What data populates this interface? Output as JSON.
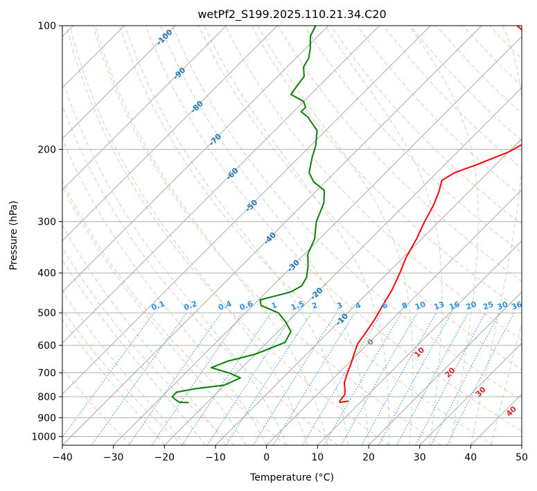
{
  "chart_data": {
    "type": "line",
    "title": "wetPf2_S199.2025.110.21.34.C20",
    "xlabel": "Temperature (°C)",
    "ylabel": "Pressure (hPa)",
    "xlim": [
      -40,
      50
    ],
    "ylim": [
      1050,
      100
    ],
    "y_scale": "log",
    "skew_deg": 45,
    "grid": true,
    "x_ticks": [
      "−40",
      "−30",
      "−20",
      "−10",
      "0",
      "10",
      "20",
      "30",
      "40",
      "50"
    ],
    "y_ticks": [
      {
        "p": 100,
        "label": "100"
      },
      {
        "p": 200,
        "label": "200"
      },
      {
        "p": 300,
        "label": "300"
      },
      {
        "p": 400,
        "label": "400"
      },
      {
        "p": 500,
        "label": "500"
      },
      {
        "p": 600,
        "label": "600"
      },
      {
        "p": 700,
        "label": "700"
      },
      {
        "p": 800,
        "label": "800"
      },
      {
        "p": 900,
        "label": "900"
      },
      {
        "p": 1000,
        "label": "1000"
      }
    ],
    "colors": {
      "temperature": "#ff0000",
      "dewpoint": "#008000",
      "isotherm": "#aaaaaa",
      "dry_adiabat": "#ffbfa8",
      "moist_adiabat": "#b8dcb8",
      "mixing_ratio": "#2c8ee8",
      "isotherm_label": "#1f77b4",
      "moist_label": "#d62728",
      "mixing_label": "#2e8fe6"
    },
    "series": [
      {
        "role": "temperature",
        "color": "#ff0000",
        "points": [
          [
            7.3,
            820
          ],
          [
            6.0,
            826
          ],
          [
            5.7,
            820
          ],
          [
            5.4,
            790
          ],
          [
            4.3,
            765
          ],
          [
            3.0,
            740
          ],
          [
            1.7,
            700
          ],
          [
            0.6,
            665
          ],
          [
            -0.7,
            630
          ],
          [
            -2.0,
            595
          ],
          [
            -2.6,
            560
          ],
          [
            -3.4,
            520
          ],
          [
            -4.6,
            480
          ],
          [
            -5.8,
            440
          ],
          [
            -7.6,
            400
          ],
          [
            -9.5,
            365
          ],
          [
            -11.0,
            330
          ],
          [
            -12.8,
            300
          ],
          [
            -14.3,
            273
          ],
          [
            -15.9,
            253
          ],
          [
            -17.5,
            238
          ],
          [
            -16.5,
            228
          ],
          [
            -13.5,
            217
          ],
          [
            -10.0,
            203
          ],
          [
            -7.5,
            186
          ],
          [
            -6.8,
            172
          ],
          [
            -7.8,
            160
          ],
          [
            -10.0,
            148
          ],
          [
            -13.0,
            136
          ],
          [
            -18.5,
            124
          ],
          [
            -23.0,
            114
          ],
          [
            -28.0,
            107
          ],
          [
            -33.0,
            100
          ]
        ]
      },
      {
        "role": "dewpoint",
        "color": "#008000",
        "points": [
          [
            -23.7,
            827
          ],
          [
            -25.5,
            825
          ],
          [
            -26.6,
            815
          ],
          [
            -28.0,
            800
          ],
          [
            -28.0,
            780
          ],
          [
            -25.0,
            765
          ],
          [
            -20.0,
            750
          ],
          [
            -18.3,
            720
          ],
          [
            -21.5,
            700
          ],
          [
            -26.0,
            680
          ],
          [
            -24.0,
            655
          ],
          [
            -20.0,
            630
          ],
          [
            -16.5,
            590
          ],
          [
            -17.5,
            555
          ],
          [
            -20.5,
            525
          ],
          [
            -23.6,
            500
          ],
          [
            -28.4,
            480
          ],
          [
            -29.7,
            465
          ],
          [
            -27.5,
            455
          ],
          [
            -25.3,
            445
          ],
          [
            -24.3,
            430
          ],
          [
            -25.0,
            410
          ],
          [
            -26.9,
            385
          ],
          [
            -29.3,
            360
          ],
          [
            -31.0,
            330
          ],
          [
            -34.0,
            300
          ],
          [
            -36.2,
            270
          ],
          [
            -38.5,
            252
          ],
          [
            -42.3,
            240
          ],
          [
            -45.0,
            228
          ],
          [
            -47.3,
            210
          ],
          [
            -49.0,
            196
          ],
          [
            -51.7,
            180
          ],
          [
            -56.1,
            167
          ],
          [
            -58.5,
            162
          ],
          [
            -58.5,
            158
          ],
          [
            -60.0,
            153
          ],
          [
            -63.9,
            147
          ],
          [
            -64.5,
            138
          ],
          [
            -64.8,
            133
          ],
          [
            -66.8,
            126
          ],
          [
            -67.5,
            120
          ],
          [
            -69.0,
            114
          ],
          [
            -71.5,
            106
          ],
          [
            -72.5,
            100
          ]
        ]
      }
    ],
    "isotherm_labels": [
      {
        "t": -100,
        "label": "-100"
      },
      {
        "t": -90,
        "label": "-90"
      },
      {
        "t": -80,
        "label": "-80"
      },
      {
        "t": -70,
        "label": "-70"
      },
      {
        "t": -60,
        "label": "-60"
      },
      {
        "t": -50,
        "label": "-50"
      },
      {
        "t": -40,
        "label": "-40"
      },
      {
        "t": -30,
        "label": "-30"
      },
      {
        "t": -20,
        "label": "-20"
      },
      {
        "t": -10,
        "label": "-10"
      },
      {
        "t": 0,
        "label": "0"
      }
    ],
    "moist_labels": [
      {
        "t": 10,
        "label": "10"
      },
      {
        "t": 20,
        "label": "20"
      },
      {
        "t": 30,
        "label": "30"
      },
      {
        "t": 40,
        "label": "40"
      }
    ],
    "mixing_ratio_labels": [
      {
        "w": 0.1,
        "label": "0.1"
      },
      {
        "w": 0.2,
        "label": "0.2"
      },
      {
        "w": 0.4,
        "label": "0.4"
      },
      {
        "w": 0.6,
        "label": "0.6"
      },
      {
        "w": 1,
        "label": "1"
      },
      {
        "w": 1.5,
        "label": "1.5"
      },
      {
        "w": 2,
        "label": "2"
      },
      {
        "w": 3,
        "label": "3"
      },
      {
        "w": 4,
        "label": "4"
      },
      {
        "w": 6,
        "label": "6"
      },
      {
        "w": 8,
        "label": "8"
      },
      {
        "w": 10,
        "label": "10"
      },
      {
        "w": 13,
        "label": "13"
      },
      {
        "w": 16,
        "label": "16"
      },
      {
        "w": 20,
        "label": "20"
      },
      {
        "w": 25,
        "label": "25"
      },
      {
        "w": 30,
        "label": "30"
      },
      {
        "w": 36,
        "label": "36"
      }
    ]
  }
}
